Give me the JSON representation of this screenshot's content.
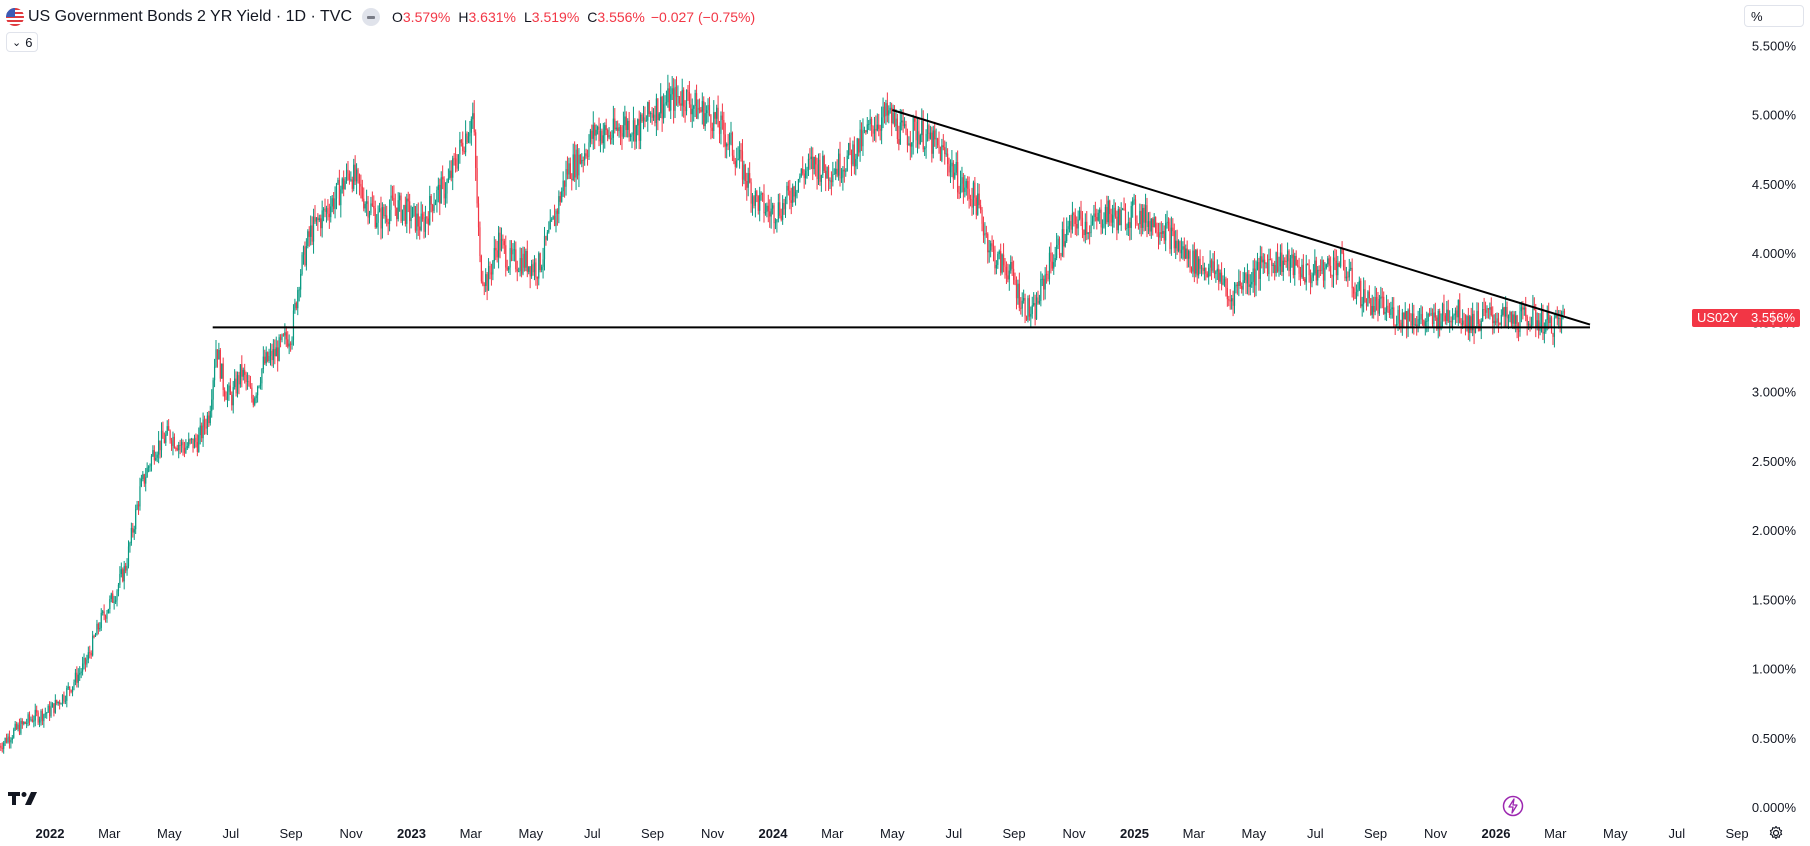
{
  "legend": {
    "title": "US Government Bonds 2 YR Yield · 1D · TVC",
    "open_key": "O",
    "open": "3.579%",
    "high_key": "H",
    "high": "3.631%",
    "low_key": "L",
    "low": "3.519%",
    "close_key": "C",
    "close": "3.556%",
    "change": "−0.027 (−0.75%)",
    "indicator_count": "6"
  },
  "price_scale_unit": "%",
  "price_tag": {
    "symbol": "US02Y",
    "value": "3.556%",
    "color": "#f23645"
  },
  "colors": {
    "up": "#089981",
    "down": "#f23645",
    "trendline": "#000000"
  },
  "chart_data": {
    "type": "candlestick",
    "title": "US Government Bonds 2 YR Yield · 1D · TVC",
    "y_ticks": [
      "5.500%",
      "5.000%",
      "4.500%",
      "4.000%",
      "3.500%",
      "3.000%",
      "2.500%",
      "2.000%",
      "1.500%",
      "1.000%",
      "0.500%",
      "0.000%"
    ],
    "ylim": [
      0,
      5.5
    ],
    "x_ticks": [
      {
        "label": "2022",
        "t": 2022.0,
        "bold": true
      },
      {
        "label": "Mar",
        "t": 2022.164
      },
      {
        "label": "May",
        "t": 2022.33
      },
      {
        "label": "Jul",
        "t": 2022.5
      },
      {
        "label": "Sep",
        "t": 2022.667
      },
      {
        "label": "Nov",
        "t": 2022.833
      },
      {
        "label": "2023",
        "t": 2023.0,
        "bold": true
      },
      {
        "label": "Mar",
        "t": 2023.164
      },
      {
        "label": "May",
        "t": 2023.33
      },
      {
        "label": "Jul",
        "t": 2023.5
      },
      {
        "label": "Sep",
        "t": 2023.667
      },
      {
        "label": "Nov",
        "t": 2023.833
      },
      {
        "label": "2024",
        "t": 2024.0,
        "bold": true
      },
      {
        "label": "Mar",
        "t": 2024.164
      },
      {
        "label": "May",
        "t": 2024.33
      },
      {
        "label": "Jul",
        "t": 2024.5
      },
      {
        "label": "Sep",
        "t": 2024.667
      },
      {
        "label": "Nov",
        "t": 2024.833
      },
      {
        "label": "2025",
        "t": 2025.0,
        "bold": true
      },
      {
        "label": "Mar",
        "t": 2025.164
      },
      {
        "label": "May",
        "t": 2025.33
      },
      {
        "label": "Jul",
        "t": 2025.5
      },
      {
        "label": "Sep",
        "t": 2025.667
      },
      {
        "label": "Nov",
        "t": 2025.833
      },
      {
        "label": "2026",
        "t": 2026.0,
        "bold": true
      },
      {
        "label": "Mar",
        "t": 2026.164
      },
      {
        "label": "May",
        "t": 2026.33
      },
      {
        "label": "Jul",
        "t": 2026.5
      },
      {
        "label": "Sep",
        "t": 2026.667
      }
    ],
    "path": [
      [
        2021.86,
        0.45
      ],
      [
        2021.9,
        0.55
      ],
      [
        2021.95,
        0.65
      ],
      [
        2022.0,
        0.7
      ],
      [
        2022.05,
        0.85
      ],
      [
        2022.1,
        1.05
      ],
      [
        2022.14,
        1.35
      ],
      [
        2022.18,
        1.55
      ],
      [
        2022.21,
        1.75
      ],
      [
        2022.25,
        2.3
      ],
      [
        2022.29,
        2.6
      ],
      [
        2022.33,
        2.7
      ],
      [
        2022.37,
        2.6
      ],
      [
        2022.41,
        2.65
      ],
      [
        2022.44,
        2.85
      ],
      [
        2022.46,
        3.35
      ],
      [
        2022.48,
        3.05
      ],
      [
        2022.5,
        2.95
      ],
      [
        2022.53,
        3.15
      ],
      [
        2022.56,
        2.95
      ],
      [
        2022.59,
        3.2
      ],
      [
        2022.63,
        3.3
      ],
      [
        2022.67,
        3.45
      ],
      [
        2022.69,
        3.85
      ],
      [
        2022.72,
        4.15
      ],
      [
        2022.76,
        4.3
      ],
      [
        2022.8,
        4.45
      ],
      [
        2022.83,
        4.6
      ],
      [
        2022.87,
        4.4
      ],
      [
        2022.91,
        4.25
      ],
      [
        2022.95,
        4.35
      ],
      [
        2022.99,
        4.3
      ],
      [
        2023.03,
        4.2
      ],
      [
        2023.06,
        4.4
      ],
      [
        2023.1,
        4.5
      ],
      [
        2023.14,
        4.8
      ],
      [
        2023.17,
        5.0
      ],
      [
        2023.19,
        3.9
      ],
      [
        2023.21,
        3.8
      ],
      [
        2023.24,
        4.1
      ],
      [
        2023.27,
        3.95
      ],
      [
        2023.31,
        3.95
      ],
      [
        2023.35,
        3.9
      ],
      [
        2023.39,
        4.2
      ],
      [
        2023.43,
        4.6
      ],
      [
        2023.47,
        4.7
      ],
      [
        2023.51,
        4.9
      ],
      [
        2023.55,
        4.85
      ],
      [
        2023.59,
        4.95
      ],
      [
        2023.63,
        4.9
      ],
      [
        2023.67,
        5.05
      ],
      [
        2023.71,
        5.1
      ],
      [
        2023.75,
        5.15
      ],
      [
        2023.79,
        5.05
      ],
      [
        2023.83,
        5.0
      ],
      [
        2023.87,
        4.85
      ],
      [
        2023.91,
        4.65
      ],
      [
        2023.95,
        4.4
      ],
      [
        2023.99,
        4.3
      ],
      [
        2024.03,
        4.35
      ],
      [
        2024.07,
        4.55
      ],
      [
        2024.11,
        4.65
      ],
      [
        2024.15,
        4.6
      ],
      [
        2024.19,
        4.65
      ],
      [
        2024.23,
        4.75
      ],
      [
        2024.28,
        4.95
      ],
      [
        2024.32,
        5.0
      ],
      [
        2024.36,
        4.85
      ],
      [
        2024.4,
        4.9
      ],
      [
        2024.44,
        4.8
      ],
      [
        2024.48,
        4.7
      ],
      [
        2024.52,
        4.5
      ],
      [
        2024.56,
        4.4
      ],
      [
        2024.6,
        4.05
      ],
      [
        2024.62,
        3.95
      ],
      [
        2024.65,
        3.9
      ],
      [
        2024.69,
        3.65
      ],
      [
        2024.72,
        3.55
      ],
      [
        2024.76,
        3.9
      ],
      [
        2024.8,
        4.1
      ],
      [
        2024.84,
        4.25
      ],
      [
        2024.88,
        4.2
      ],
      [
        2024.92,
        4.3
      ],
      [
        2024.96,
        4.25
      ],
      [
        2025.0,
        4.3
      ],
      [
        2025.04,
        4.25
      ],
      [
        2025.08,
        4.2
      ],
      [
        2025.12,
        4.05
      ],
      [
        2025.16,
        3.95
      ],
      [
        2025.2,
        3.9
      ],
      [
        2025.24,
        3.85
      ],
      [
        2025.26,
        3.65
      ],
      [
        2025.29,
        3.8
      ],
      [
        2025.33,
        3.85
      ],
      [
        2025.37,
        3.95
      ],
      [
        2025.41,
        3.95
      ],
      [
        2025.45,
        3.9
      ],
      [
        2025.49,
        3.85
      ],
      [
        2025.53,
        3.9
      ],
      [
        2025.57,
        3.95
      ],
      [
        2025.61,
        3.75
      ],
      [
        2025.65,
        3.65
      ],
      [
        2025.69,
        3.6
      ],
      [
        2025.73,
        3.55
      ],
      [
        2025.77,
        3.55
      ],
      [
        2025.81,
        3.5
      ],
      [
        2025.85,
        3.55
      ],
      [
        2025.89,
        3.6
      ],
      [
        2025.93,
        3.5
      ],
      [
        2025.97,
        3.55
      ],
      [
        2026.01,
        3.55
      ],
      [
        2026.05,
        3.5
      ],
      [
        2026.09,
        3.55
      ],
      [
        2026.12,
        3.52
      ],
      [
        2026.15,
        3.48
      ],
      [
        2026.18,
        3.52
      ],
      [
        2026.19,
        3.556
      ]
    ],
    "trendlines": [
      {
        "name": "support",
        "from": [
          2022.45,
          3.47
        ],
        "to": [
          2026.26,
          3.47
        ]
      },
      {
        "name": "resistance",
        "from": [
          2024.33,
          5.04
        ],
        "to": [
          2026.26,
          3.49
        ]
      }
    ]
  }
}
